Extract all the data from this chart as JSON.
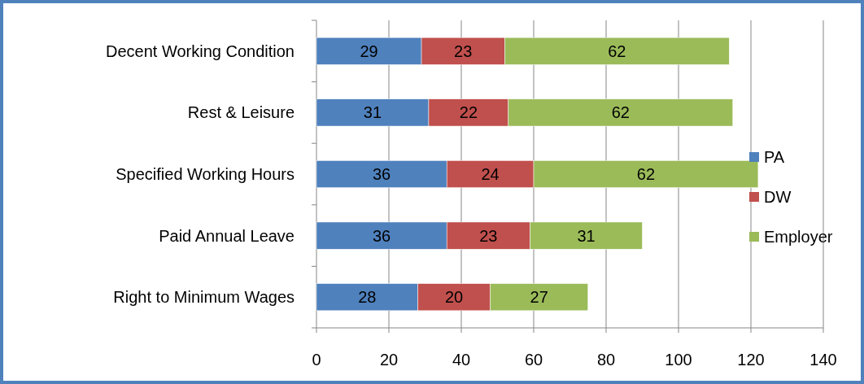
{
  "chart_data": {
    "type": "bar",
    "orientation": "horizontal",
    "stacked": true,
    "categories": [
      "Decent Working Condition",
      "Rest & Leisure",
      "Specified Working Hours",
      "Paid Annual Leave",
      "Right to Minimum Wages"
    ],
    "series": [
      {
        "name": "PA",
        "color": "#4f81bd",
        "values": [
          29,
          31,
          36,
          36,
          28
        ]
      },
      {
        "name": "DW",
        "color": "#c0504d",
        "values": [
          23,
          22,
          24,
          23,
          20
        ]
      },
      {
        "name": "Employer",
        "color": "#9bbb59",
        "values": [
          62,
          62,
          62,
          31,
          27
        ]
      }
    ],
    "xlim": [
      0,
      140
    ],
    "xticks": [
      0,
      20,
      40,
      60,
      80,
      100,
      120,
      140
    ],
    "grid": "x",
    "legend": "right",
    "data_labels": true
  }
}
